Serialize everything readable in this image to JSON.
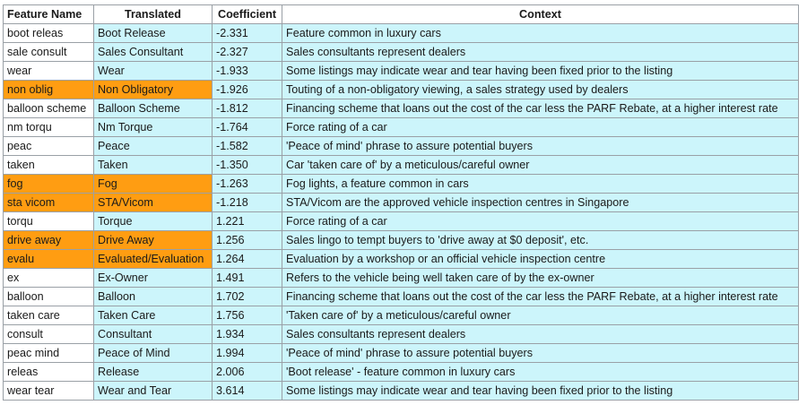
{
  "headers": {
    "feature_name": "Feature Name",
    "translated": "Translated",
    "coefficient": "Coefficient",
    "context": "Context"
  },
  "colors": {
    "highlight": "#ff9d12",
    "cyan_fill": "#ccf5fb"
  },
  "rows": [
    {
      "feature": "boot releas",
      "translated": "Boot Release",
      "coefficient": "-2.331",
      "context": "Feature common in luxury cars",
      "highlight": false
    },
    {
      "feature": "sale consult",
      "translated": "Sales Consultant",
      "coefficient": "-2.327",
      "context": "Sales consultants represent dealers",
      "highlight": false
    },
    {
      "feature": "wear",
      "translated": "Wear",
      "coefficient": "-1.933",
      "context": "Some listings may indicate wear and tear having been fixed prior to the listing",
      "highlight": false
    },
    {
      "feature": "non oblig",
      "translated": "Non Obligatory",
      "coefficient": "-1.926",
      "context": "Touting of a non-obligatory viewing, a sales strategy used by dealers",
      "highlight": true
    },
    {
      "feature": "balloon scheme",
      "translated": "Balloon Scheme",
      "coefficient": "-1.812",
      "context": "Financing scheme that loans out the cost of the car less the PARF Rebate, at a higher interest rate",
      "highlight": false
    },
    {
      "feature": "nm torqu",
      "translated": "Nm Torque",
      "coefficient": "-1.764",
      "context": "Force rating of a car",
      "highlight": false
    },
    {
      "feature": "peac",
      "translated": "Peace",
      "coefficient": "-1.582",
      "context": "'Peace of mind' phrase to assure potential buyers",
      "highlight": false
    },
    {
      "feature": "taken",
      "translated": "Taken",
      "coefficient": "-1.350",
      "context": "Car 'taken care of' by a meticulous/careful owner",
      "highlight": false
    },
    {
      "feature": "fog",
      "translated": "Fog",
      "coefficient": "-1.263",
      "context": "Fog lights, a feature common in cars",
      "highlight": true
    },
    {
      "feature": "sta vicom",
      "translated": "STA/Vicom",
      "coefficient": "-1.218",
      "context": "STA/Vicom are the approved vehicle inspection centres in Singapore",
      "highlight": true
    },
    {
      "feature": "torqu",
      "translated": "Torque",
      "coefficient": "1.221",
      "context": "Force rating of a car",
      "highlight": false
    },
    {
      "feature": "drive away",
      "translated": "Drive Away",
      "coefficient": "1.256",
      "context": "Sales lingo to tempt buyers to 'drive away at $0 deposit', etc.",
      "highlight": true
    },
    {
      "feature": "evalu",
      "translated": "Evaluated/Evaluation",
      "coefficient": "1.264",
      "context": "Evaluation by a workshop or an official vehicle inspection centre",
      "highlight": true
    },
    {
      "feature": "ex",
      "translated": "Ex-Owner",
      "coefficient": "1.491",
      "context": "Refers to the vehicle being well taken care of by the ex-owner",
      "highlight": false
    },
    {
      "feature": "balloon",
      "translated": "Balloon",
      "coefficient": "1.702",
      "context": "Financing scheme that loans out the cost of the car less the PARF Rebate, at a higher interest rate",
      "highlight": false
    },
    {
      "feature": "taken care",
      "translated": "Taken Care",
      "coefficient": "1.756",
      "context": "'Taken care of' by a meticulous/careful owner",
      "highlight": false
    },
    {
      "feature": "consult",
      "translated": "Consultant",
      "coefficient": "1.934",
      "context": "Sales consultants represent dealers",
      "highlight": false
    },
    {
      "feature": "peac mind",
      "translated": "Peace of Mind",
      "coefficient": "1.994",
      "context": "'Peace of mind' phrase to assure potential buyers",
      "highlight": false
    },
    {
      "feature": "releas",
      "translated": "Release",
      "coefficient": "2.006",
      "context": "'Boot release' - feature common in luxury cars",
      "highlight": false
    },
    {
      "feature": "wear tear",
      "translated": "Wear and Tear",
      "coefficient": "3.614",
      "context": "Some listings may indicate wear and tear having been fixed prior to the listing",
      "highlight": false
    }
  ]
}
